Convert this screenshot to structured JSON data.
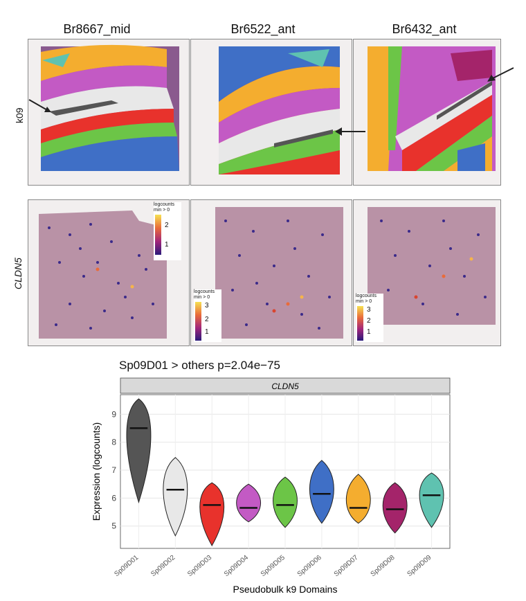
{
  "columns": [
    "Br8667_mid",
    "Br6522_ant",
    "Br6432_ant"
  ],
  "row_labels": {
    "top": "k09",
    "bottom": "CLDN5"
  },
  "legend": {
    "title_line1": "logcounts",
    "title_line2": "min > 0",
    "panel1_ticks": [
      "2",
      "1"
    ],
    "panel2_ticks": [
      "3",
      "2",
      "1"
    ],
    "panel3_ticks": [
      "3",
      "2",
      "1"
    ]
  },
  "domain_colors": {
    "Sp09D01": "#555555",
    "Sp09D02": "#e8e8e8",
    "Sp09D03": "#e8322c",
    "Sp09D04": "#c35ac4",
    "Sp09D05": "#6cc547",
    "Sp09D06": "#3f6fc6",
    "Sp09D07": "#f4ad2f",
    "Sp09D08": "#a4246a",
    "Sp09D09": "#5fc2b0"
  },
  "chart_data": {
    "type": "violin",
    "title": "Sp09D01 > others p=2.04e−75",
    "facet_label": "CLDN5",
    "xlabel": "Pseudobulk k9 Domains",
    "ylabel": "Expression (logcounts)",
    "ylim": [
      4.2,
      9.7
    ],
    "yticks": [
      5,
      6,
      7,
      8,
      9
    ],
    "grid": true,
    "categories": [
      "Sp09D01",
      "Sp09D02",
      "Sp09D03",
      "Sp09D04",
      "Sp09D05",
      "Sp09D06",
      "Sp09D07",
      "Sp09D08",
      "Sp09D09"
    ],
    "medians": [
      8.5,
      6.3,
      5.75,
      5.65,
      5.75,
      6.15,
      5.65,
      5.6,
      6.1
    ],
    "min": [
      5.85,
      4.65,
      4.3,
      5.15,
      4.95,
      5.1,
      5.1,
      4.75,
      4.95
    ],
    "max": [
      9.55,
      7.45,
      6.55,
      6.5,
      6.75,
      7.35,
      6.85,
      6.55,
      6.9
    ]
  }
}
